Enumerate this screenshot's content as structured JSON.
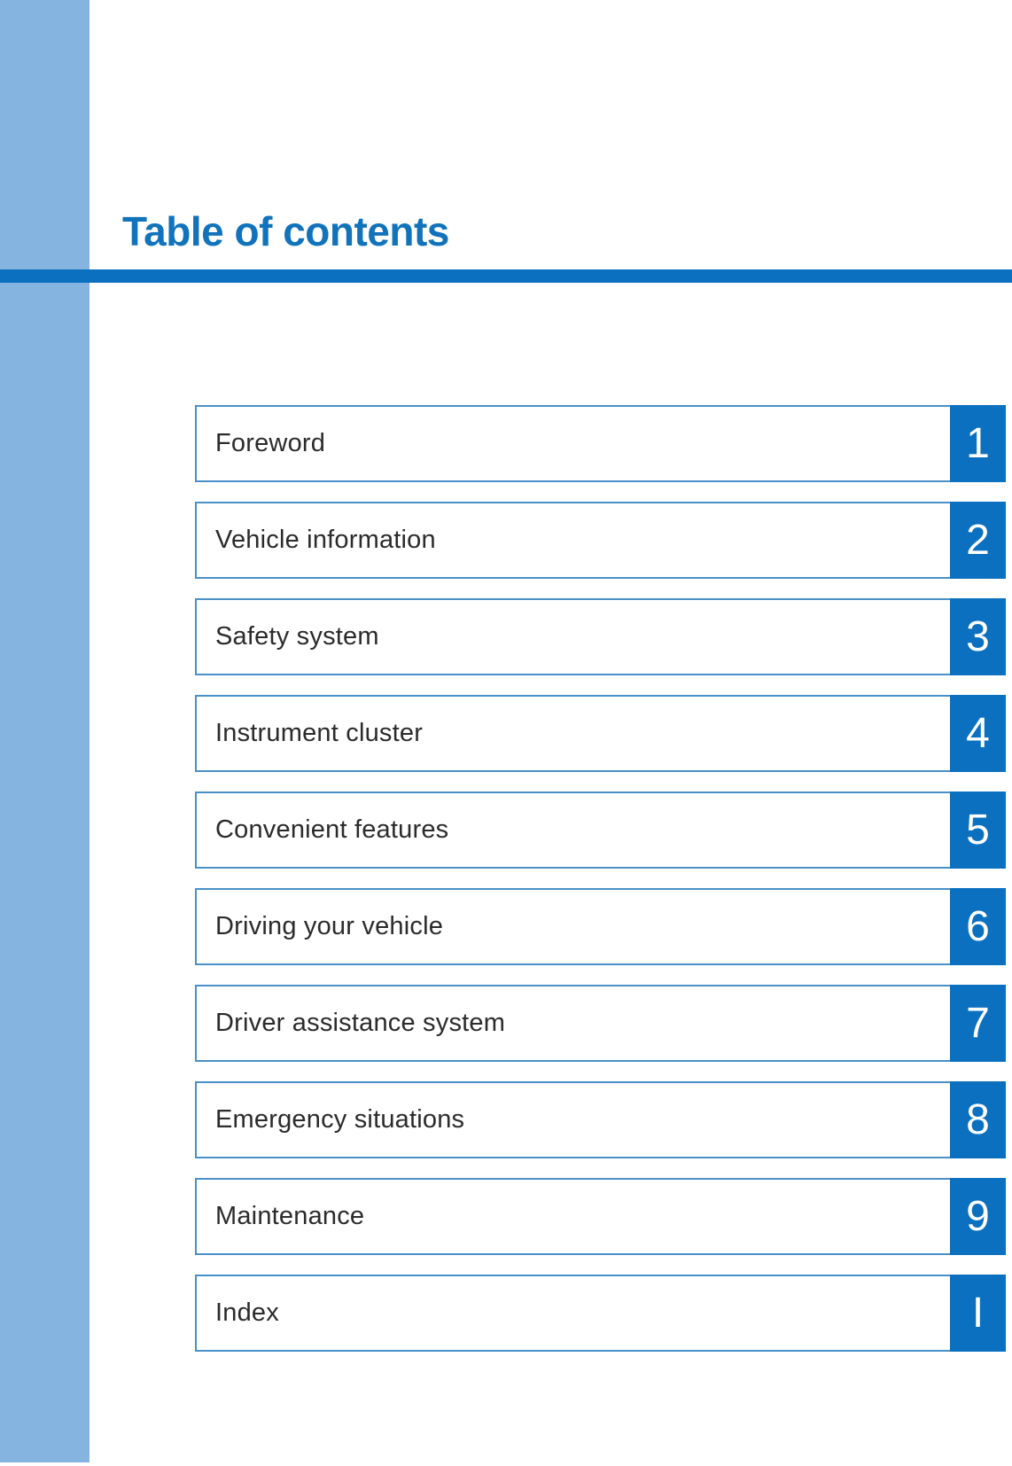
{
  "page": {
    "title": "Table of contents"
  },
  "colors": {
    "accent_dark_blue": "#0b70bf",
    "title_blue": "#1173bc",
    "sidebar_light_blue": "#85b4e0",
    "row_border_blue": "#4a90c8",
    "label_text": "#2b2b2b",
    "number_text": "#ffffff"
  },
  "toc": [
    {
      "label": "Foreword",
      "number": "1"
    },
    {
      "label": "Vehicle information",
      "number": "2"
    },
    {
      "label": "Safety system",
      "number": "3"
    },
    {
      "label": "Instrument cluster",
      "number": "4"
    },
    {
      "label": "Convenient features",
      "number": "5"
    },
    {
      "label": "Driving your vehicle",
      "number": "6"
    },
    {
      "label": "Driver assistance system",
      "number": "7"
    },
    {
      "label": "Emergency situations",
      "number": "8"
    },
    {
      "label": "Maintenance",
      "number": "9"
    },
    {
      "label": "Index",
      "number": "I"
    }
  ]
}
